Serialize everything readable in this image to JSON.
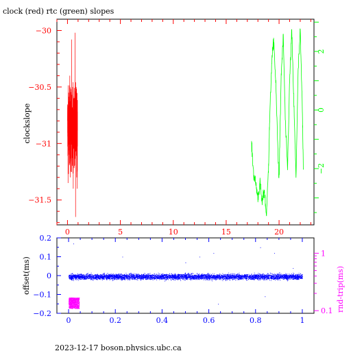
{
  "title": "clock (red) rtc (green) slopes",
  "footer": "2023-12-17 boson.physics.ubc.ca",
  "colors": {
    "red": "#ff0000",
    "green": "#00ff00",
    "blue": "#0000ff",
    "magenta": "#ff00ff",
    "frame": "#000000"
  },
  "chart_data": [
    {
      "type": "line",
      "title": "clock (red) rtc (green) slopes",
      "ylabel": "clockslope",
      "xlim": [
        -1,
        23.3
      ],
      "ylim": [
        -31.72,
        -29.9
      ],
      "xticks": [
        0,
        5,
        10,
        15,
        20
      ],
      "xtick_labels": [
        "0",
        "5",
        "10",
        "15",
        "20"
      ],
      "yticks": [
        -30,
        -30.5,
        -31,
        -31.5
      ],
      "ytick_labels": [
        "−30",
        "−30.5",
        "−31",
        "−31.5"
      ],
      "y2ticks": [
        2,
        0,
        -2
      ],
      "y2tick_labels": [
        "2",
        "0",
        "−2"
      ],
      "y2lim": [
        -3.92,
        3.1
      ],
      "grid": false,
      "series": [
        {
          "color": "red",
          "axis": "left",
          "x_range": [
            0,
            0.95
          ],
          "y_range": [
            -31.65,
            -30.02
          ],
          "x": [
            0,
            0.05,
            0.1,
            0.15,
            0.2,
            0.25,
            0.3,
            0.35,
            0.4,
            0.45,
            0.5,
            0.55,
            0.6,
            0.65,
            0.7,
            0.75,
            0.8,
            0.85,
            0.9,
            0.95
          ],
          "y": [
            -30.8,
            -31.35,
            -30.55,
            -31.1,
            -30.4,
            -31.3,
            -30.3,
            -31.25,
            -30.08,
            -31.1,
            -30.5,
            -31.4,
            -30.6,
            -31.2,
            -30.02,
            -31.65,
            -30.5,
            -31.3,
            -30.7,
            -31.4
          ]
        },
        {
          "color": "green",
          "axis": "right",
          "x_range": [
            17.4,
            22.3
          ],
          "x": [
            17.4,
            17.6,
            17.8,
            18.0,
            18.2,
            18.4,
            18.6,
            18.8,
            19.0,
            19.1,
            19.3,
            19.5,
            19.7,
            19.9,
            20.0,
            20.2,
            20.4,
            20.6,
            20.8,
            21.0,
            21.2,
            21.4,
            21.6,
            21.8,
            22.0,
            22.2,
            22.3
          ],
          "y": [
            -1.2,
            -2.2,
            -2.5,
            -3.0,
            -2.5,
            -3.2,
            -2.7,
            -3.6,
            -2.0,
            -0.5,
            1.6,
            2.4,
            0.8,
            -1.5,
            -2.4,
            1.2,
            2.5,
            -0.5,
            -2.0,
            1.0,
            2.7,
            0.2,
            -2.3,
            1.3,
            2.7,
            0.0,
            -2.0
          ]
        }
      ]
    },
    {
      "type": "scatter",
      "ylabel": "offset(ms)",
      "y2label": "rnd-trip(ms)",
      "xlim": [
        -0.05,
        1.05
      ],
      "ylim": [
        -0.2,
        0.2
      ],
      "xticks": [
        0,
        0.2,
        0.4,
        0.6,
        0.8,
        1
      ],
      "xtick_labels": [
        "0",
        "0.2",
        "0.4",
        "0.6",
        "0.8",
        "1"
      ],
      "yticks": [
        0.2,
        0.1,
        0,
        -0.1,
        -0.2
      ],
      "ytick_labels": [
        "0.2",
        "0.1",
        "0",
        "−0.1",
        "−0.2"
      ],
      "y2_scale": "log",
      "y2lim": [
        0.09,
        1.85
      ],
      "y2ticks": [
        1,
        0.1
      ],
      "y2tick_labels": [
        "1",
        "0.1"
      ],
      "grid": false,
      "series": [
        {
          "color": "blue",
          "axis": "left",
          "x_range": [
            0,
            1
          ],
          "y_center": -0.005,
          "y_spread": 0.025,
          "outliers": [
            [
              0.02,
              0.17
            ],
            [
              0.03,
              -0.14
            ],
            [
              0.5,
              0.07
            ],
            [
              0.56,
              0.1
            ],
            [
              0.62,
              0.12
            ],
            [
              0.64,
              -0.15
            ],
            [
              0.82,
              0.15
            ],
            [
              0.84,
              -0.11
            ],
            [
              0.88,
              0.12
            ],
            [
              0.96,
              0.04
            ],
            [
              0.23,
              0.1
            ]
          ]
        },
        {
          "color": "magenta",
          "axis": "right",
          "x_range": [
            0,
            0.045
          ],
          "y_range": [
            0.11,
            0.17
          ]
        }
      ]
    }
  ]
}
